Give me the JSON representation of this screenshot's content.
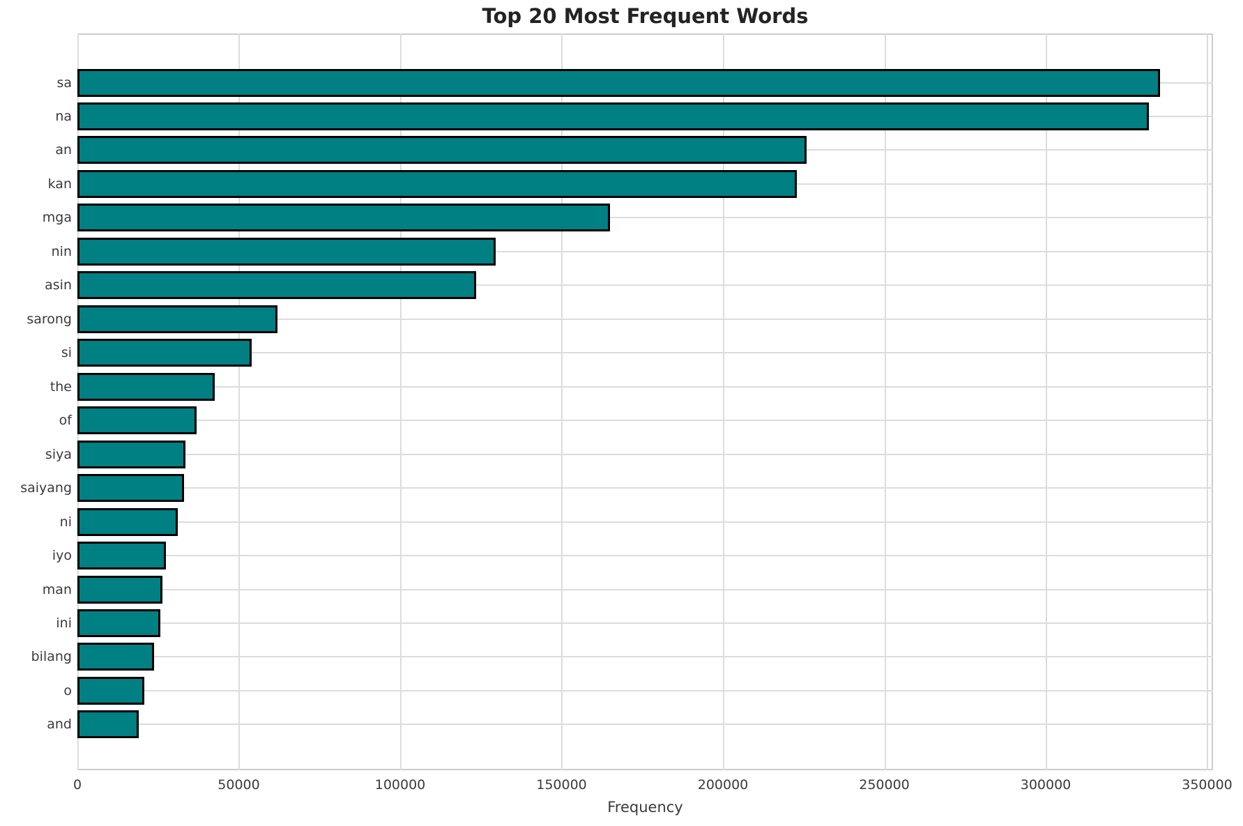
{
  "chart_data": {
    "type": "bar",
    "orientation": "horizontal",
    "title": "Top 20 Most Frequent Words",
    "xlabel": "Frequency",
    "ylabel": "",
    "categories": [
      "sa",
      "na",
      "an",
      "kan",
      "mga",
      "nin",
      "asin",
      "sarong",
      "si",
      "the",
      "of",
      "siya",
      "saiyang",
      "ni",
      "iyo",
      "man",
      "ini",
      "bilang",
      "o",
      "and"
    ],
    "values": [
      335500,
      332000,
      226000,
      223000,
      165000,
      129500,
      123500,
      62000,
      54000,
      42500,
      37000,
      33500,
      33000,
      31000,
      27500,
      26300,
      25700,
      23800,
      20700,
      19000
    ],
    "xlim": [
      0,
      351800
    ],
    "xticks": [
      0,
      50000,
      100000,
      150000,
      200000,
      250000,
      300000,
      350000
    ],
    "xtick_labels": [
      "0",
      "50000",
      "100000",
      "150000",
      "200000",
      "250000",
      "300000",
      "350000"
    ],
    "grid": true,
    "legend": "none",
    "bar_color": "#008083",
    "bar_edge_color": "#000000",
    "gridline_color": "#dcdcdc",
    "spine_color": "#cccccc"
  }
}
